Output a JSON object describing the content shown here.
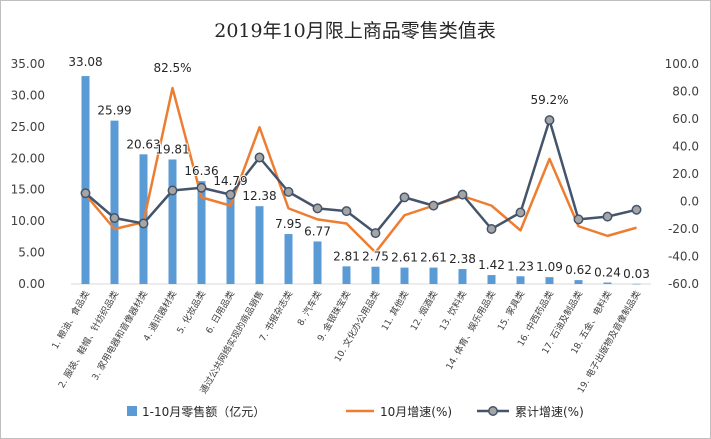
{
  "chart_data": {
    "type": "bar",
    "title": "2019年10月限上商品零售类值表",
    "categories": [
      "1. 粮油、食品类",
      "2. 服装、鞋帽、针纺织品类",
      "3. 家用电器和音像器材类",
      "4. 通讯器材类",
      "5. 化妆品类",
      "6. 日用品类",
      "通过公共网络实现的商品销售",
      "7. 书报杂志类",
      "8. 汽车类",
      "9. 金银珠宝类",
      "10. 文化办公用品类",
      "11. 其他类",
      "12. 烟酒类",
      "13. 饮料类",
      "14. 体育、娱乐用品类",
      "15. 家具类",
      "16. 中西药品类",
      "17. 石油及制品类",
      "18. 五金、电料类",
      "19. 电子出版物及音像制品类"
    ],
    "series": [
      {
        "name": "1-10月零售额（亿元）",
        "kind": "bar",
        "axis": "left",
        "color": "#5b9bd5",
        "values": [
          33.08,
          25.99,
          20.63,
          19.81,
          16.36,
          14.79,
          12.38,
          7.95,
          6.77,
          2.81,
          2.75,
          2.61,
          2.61,
          2.38,
          1.42,
          1.23,
          1.09,
          0.62,
          0.24,
          0.03
        ],
        "labels": [
          "33.08",
          "25.99",
          "20.63",
          "19.81",
          "16.36",
          "14.79",
          "12.38",
          "7.95",
          "6.77",
          "2.81",
          "2.75",
          "2.61",
          "2.61",
          "2.38",
          "1.42",
          "1.23",
          "1.09",
          "0.62",
          "0.24",
          "0.03"
        ]
      },
      {
        "name": "10月增速(%)",
        "kind": "line",
        "axis": "right",
        "color": "#ed7d31",
        "values": [
          5.0,
          -20.0,
          -15.0,
          82.5,
          3.0,
          -3.0,
          54.0,
          -5.0,
          -13.0,
          -16.0,
          -37.0,
          -10.0,
          -3.0,
          4.0,
          -3.0,
          -21.0,
          31.0,
          -18.0,
          -25.0,
          -19.0
        ]
      },
      {
        "name": "累计增速(%)",
        "kind": "line",
        "axis": "right",
        "color": "#44546a",
        "marker_fill": "#a5a5a5",
        "values": [
          6.0,
          -12.0,
          -16.0,
          8.0,
          10.0,
          5.0,
          32.0,
          7.0,
          -5.0,
          -7.0,
          -23.0,
          3.0,
          -3.0,
          5.0,
          -20.0,
          -8.0,
          59.2,
          -13.0,
          -11.0,
          -6.0
        ]
      }
    ],
    "annotations": [
      {
        "series": 1,
        "index": 3,
        "text": "82.5%"
      },
      {
        "series": 2,
        "index": 16,
        "text": "59.2%"
      }
    ],
    "left_axis": {
      "min": 0,
      "max": 35,
      "step": 5,
      "tick_labels": [
        "0.00",
        "5.00",
        "10.00",
        "15.00",
        "20.00",
        "25.00",
        "30.00",
        "35.00"
      ]
    },
    "right_axis": {
      "min": -60,
      "max": 100,
      "step": 20,
      "tick_labels": [
        "-60.0",
        "-40.0",
        "-20.0",
        "0.0",
        "20.0",
        "40.0",
        "60.0",
        "80.0",
        "100.0"
      ]
    },
    "grid": false,
    "legend_position": "bottom",
    "legend": [
      "1-10月零售额（亿元）",
      "10月增速(%)",
      "累计增速(%)"
    ]
  }
}
